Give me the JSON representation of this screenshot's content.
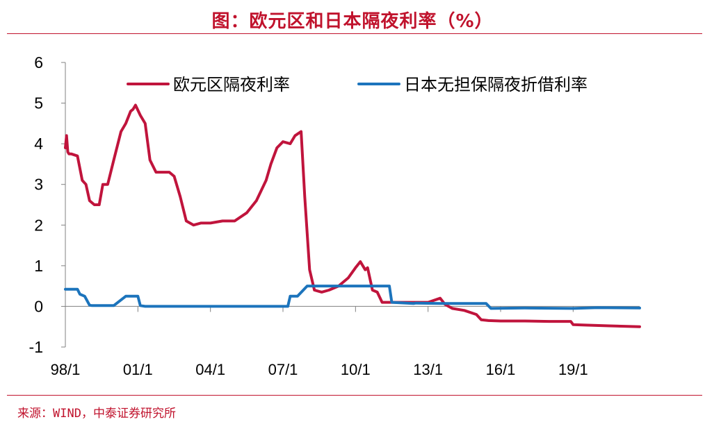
{
  "header": {
    "title": "图：欧元区和日本隔夜利率（%）"
  },
  "footer": {
    "source": "来源：WIND，中泰证券研究所"
  },
  "colors": {
    "brand_red": "#c0122c",
    "euro": "#c0143c",
    "japan": "#1c74bc",
    "axis": "#808080"
  },
  "chart_data": {
    "type": "line",
    "title": "图：欧元区和日本隔夜利率（%）",
    "xlabel": "",
    "ylabel": "",
    "ylim": [
      -1,
      6
    ],
    "yticks": [
      6,
      5,
      4,
      3,
      2,
      1,
      0,
      -1
    ],
    "xticks": [
      "98/1",
      "01/1",
      "04/1",
      "07/1",
      "10/1",
      "13/1",
      "16/1",
      "19/1"
    ],
    "xlim": [
      1999.0,
      2022.75
    ],
    "grid": false,
    "legend": "top",
    "series": [
      {
        "name": "欧元区隔夜利率",
        "color": "#c0143c",
        "x": [
          1999.0,
          1999.05,
          1999.1,
          1999.15,
          1999.25,
          1999.5,
          1999.7,
          1999.85,
          2000.0,
          2000.2,
          2000.4,
          2000.55,
          2000.75,
          2001.0,
          2001.3,
          2001.5,
          2001.7,
          2001.8,
          2001.9,
          2002.1,
          2002.3,
          2002.5,
          2002.75,
          2003.0,
          2003.3,
          2003.5,
          2003.75,
          2004.0,
          2004.3,
          2004.6,
          2005.0,
          2005.5,
          2006.0,
          2006.5,
          2006.9,
          2007.3,
          2007.5,
          2007.75,
          2008.0,
          2008.3,
          2008.5,
          2008.75,
          2008.9,
          2009.1,
          2009.3,
          2009.6,
          2009.9,
          2010.3,
          2010.7,
          2011.0,
          2011.2,
          2011.4,
          2011.5,
          2011.7,
          2011.9,
          2012.1,
          2012.3,
          2012.5,
          2012.9,
          2013.5,
          2014.0,
          2014.5,
          2014.7,
          2015.0,
          2015.5,
          2016.0,
          2016.2,
          2016.5,
          2017.0,
          2018.0,
          2019.0,
          2019.9,
          2020.0,
          2020.5,
          2021.5,
          2022.75
        ],
        "y": [
          3.9,
          4.2,
          3.8,
          3.75,
          3.75,
          3.7,
          3.1,
          3.0,
          2.6,
          2.5,
          2.5,
          3.0,
          3.0,
          3.6,
          4.3,
          4.5,
          4.8,
          4.85,
          4.95,
          4.7,
          4.5,
          3.6,
          3.3,
          3.3,
          3.3,
          3.2,
          2.7,
          2.1,
          2.0,
          2.05,
          2.05,
          2.1,
          2.1,
          2.3,
          2.6,
          3.1,
          3.5,
          3.9,
          4.05,
          4.0,
          4.2,
          4.3,
          2.7,
          0.9,
          0.4,
          0.35,
          0.4,
          0.5,
          0.7,
          0.95,
          1.1,
          0.9,
          0.95,
          0.4,
          0.35,
          0.1,
          0.1,
          0.1,
          0.1,
          0.1,
          0.1,
          0.2,
          0.05,
          -0.05,
          -0.1,
          -0.2,
          -0.33,
          -0.35,
          -0.36,
          -0.36,
          -0.37,
          -0.37,
          -0.45,
          -0.46,
          -0.48,
          -0.5
        ]
      },
      {
        "name": "日本无担保隔夜折借利率",
        "color": "#1c74bc",
        "x": [
          1999.0,
          1999.5,
          1999.6,
          1999.8,
          2000.0,
          2000.1,
          2001.0,
          2001.5,
          2002.0,
          2002.1,
          2002.3,
          2005.0,
          2008.2,
          2008.3,
          2008.6,
          2009.0,
          2009.15,
          2011.0,
          2012.4,
          2012.5,
          2013.4,
          2013.5,
          2014.5,
          2016.0,
          2016.4,
          2016.6,
          2018.0,
          2020.0,
          2021.0,
          2022.75
        ],
        "y": [
          0.42,
          0.42,
          0.3,
          0.25,
          0.03,
          0.02,
          0.02,
          0.25,
          0.25,
          0.02,
          0.0,
          0.0,
          0.0,
          0.25,
          0.25,
          0.5,
          0.5,
          0.5,
          0.5,
          0.1,
          0.07,
          0.08,
          0.07,
          0.07,
          0.07,
          -0.05,
          -0.04,
          -0.05,
          -0.03,
          -0.04
        ]
      }
    ]
  }
}
